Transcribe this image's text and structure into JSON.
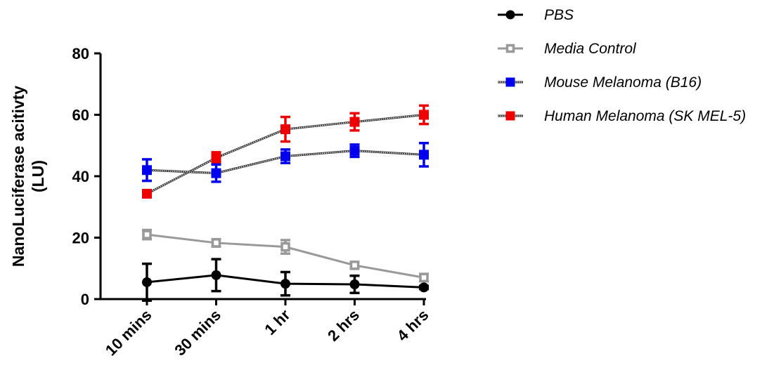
{
  "chart_data": {
    "type": "line",
    "title": "",
    "xlabel": "",
    "ylabel_line1": "NanoLuciferase acitivty",
    "ylabel_line2": "(LU)",
    "categories": [
      "10 mins",
      "30 mins",
      "1 hr",
      "2 hrs",
      "4 hrs"
    ],
    "ylim": [
      0,
      80
    ],
    "yticks": [
      0,
      20,
      40,
      60,
      80
    ],
    "grid": false,
    "legend_position": "top-right",
    "series": [
      {
        "name": "PBS",
        "color": "#000000",
        "marker": "filled-circle",
        "line_style": "solid",
        "values": [
          5.5,
          7.8,
          5.0,
          4.8,
          3.8
        ],
        "errors": [
          6.0,
          5.2,
          3.8,
          2.8,
          0.5
        ]
      },
      {
        "name": "Media Control",
        "color": "#999999",
        "marker": "open-square",
        "line_style": "solid",
        "values": [
          21.0,
          18.3,
          17.0,
          11.0,
          7.0
        ],
        "errors": [
          1.5,
          1.2,
          2.2,
          1.0,
          1.2
        ]
      },
      {
        "name": "Mouse Melanoma (B16)",
        "color": "#0000ee",
        "marker": "filled-square",
        "line_style": "dotted",
        "values": [
          42.0,
          41.0,
          46.5,
          48.3,
          47.0
        ],
        "errors": [
          3.5,
          2.8,
          2.2,
          2.0,
          3.8
        ]
      },
      {
        "name": "Human Melanoma (SK MEL-5)",
        "color": "#ee0000",
        "marker": "filled-square",
        "line_style": "dotted",
        "values": [
          34.3,
          46.0,
          55.3,
          57.7,
          60.0
        ],
        "errors": [
          0.8,
          1.8,
          4.0,
          2.8,
          3.0
        ]
      }
    ]
  }
}
